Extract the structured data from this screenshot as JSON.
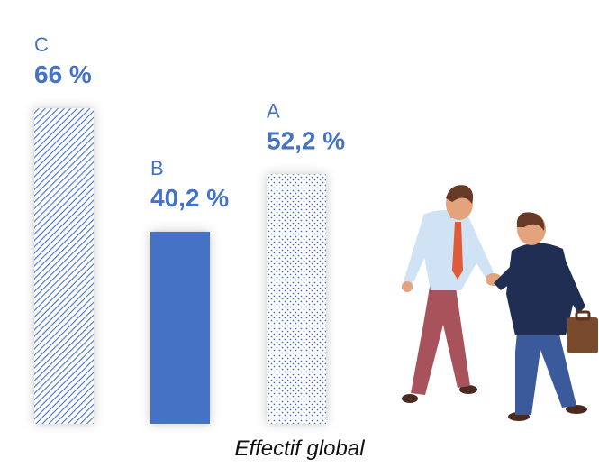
{
  "chart_data": {
    "type": "bar",
    "categories": [
      "C",
      "B",
      "A"
    ],
    "values": [
      66,
      40.2,
      52.2
    ],
    "value_labels": [
      "66 %",
      "40,2 %",
      "52,2 %"
    ],
    "ylim": [
      0,
      100
    ],
    "grid": false,
    "legend": "none",
    "title": "",
    "xlabel": "Effectif global",
    "ylabel": "",
    "bar_styles": [
      "diagonal-hatch",
      "solid",
      "dotted"
    ],
    "colors": {
      "bar": "#4472c4",
      "label": "#4472c4"
    }
  },
  "illustration": {
    "icon": "business-handshake-icon"
  }
}
